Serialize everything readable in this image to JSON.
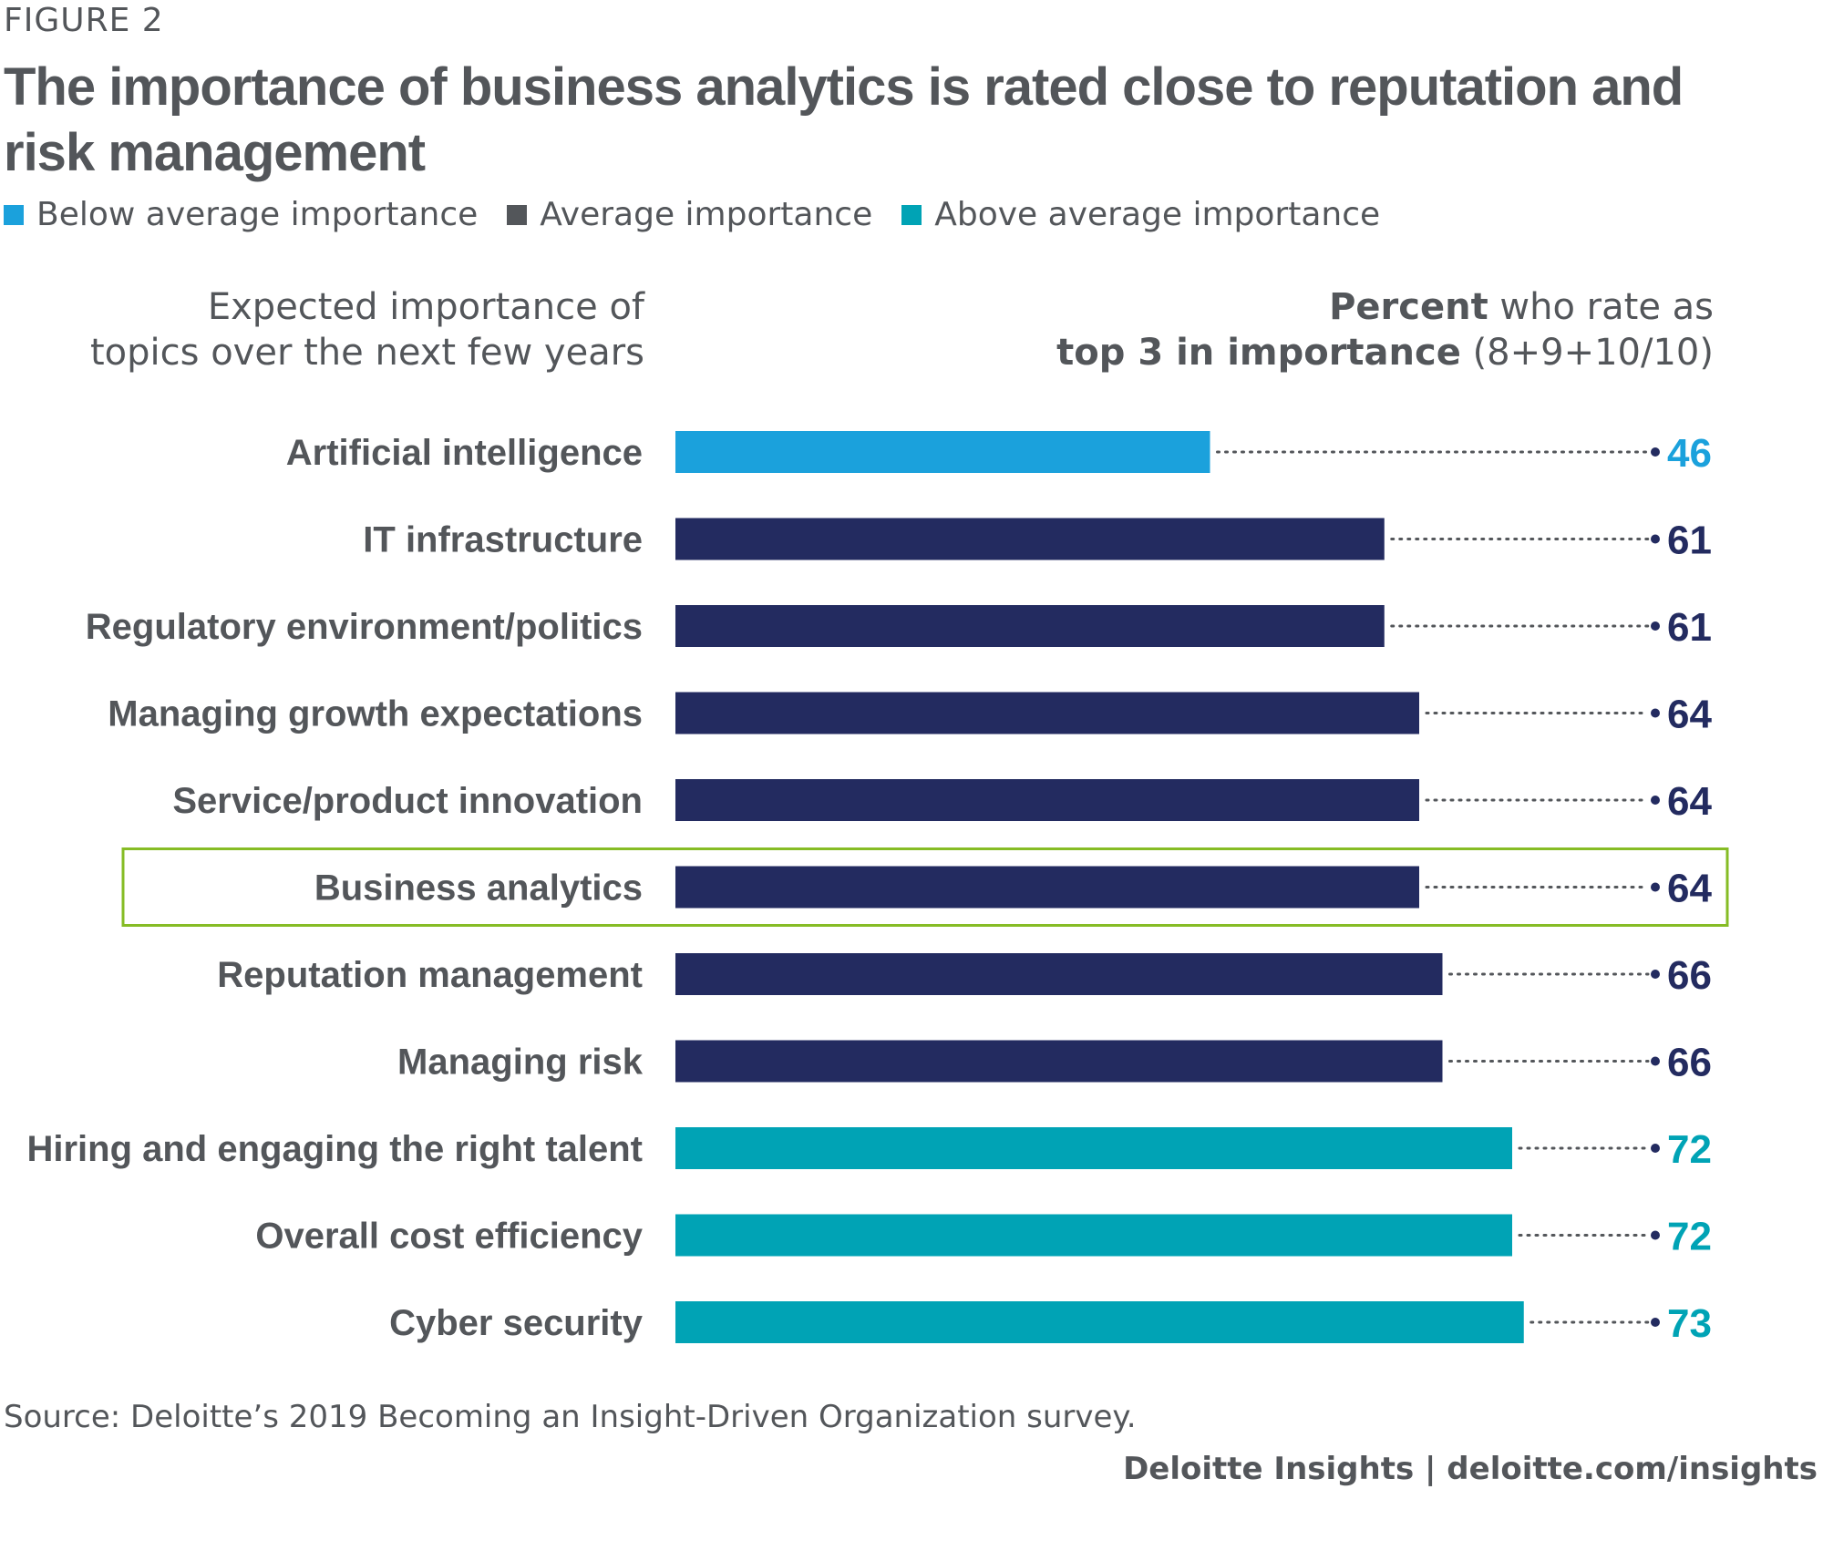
{
  "figure_label": "FIGURE 2",
  "title": "The importance of business analytics is rated close to reputation and risk management",
  "legend": [
    {
      "label": "Below average importance",
      "color": "#1ba1dc"
    },
    {
      "label": "Average importance",
      "color": "#53565a"
    },
    {
      "label": "Above average importance",
      "color": "#00a3b5"
    }
  ],
  "header_left": {
    "line1": "Expected importance of",
    "line2": "topics over the next few years"
  },
  "header_right": {
    "line1_bold": "Percent",
    "line1_rest": " who rate as",
    "line2_bold": "top 3 in importance",
    "line2_rest": " (8+9+10/10)"
  },
  "colors": {
    "below": "#1ba1dc",
    "average": "#232b60",
    "above": "#00a3b5",
    "highlight_border": "#86bc25",
    "text": "#53565a"
  },
  "chart_data": {
    "type": "bar",
    "orientation": "horizontal",
    "xlim": [
      0,
      100
    ],
    "categories": [
      "Artificial intelligence",
      "IT infrastructure",
      "Regulatory environment/politics",
      "Managing growth expectations",
      "Service/product innovation",
      "Business analytics",
      "Reputation management",
      "Managing risk",
      "Hiring and engaging the right talent",
      "Overall cost efficiency",
      "Cyber security"
    ],
    "values": [
      46,
      61,
      61,
      64,
      64,
      64,
      66,
      66,
      72,
      72,
      73
    ],
    "groups": [
      "below",
      "average",
      "average",
      "average",
      "average",
      "average",
      "average",
      "average",
      "above",
      "above",
      "above"
    ],
    "highlighted": "Business analytics"
  },
  "source": "Source: Deloitte’s 2019 Becoming an Insight-Driven Organization survey.",
  "footer": "Deloitte Insights | deloitte.com/insights"
}
